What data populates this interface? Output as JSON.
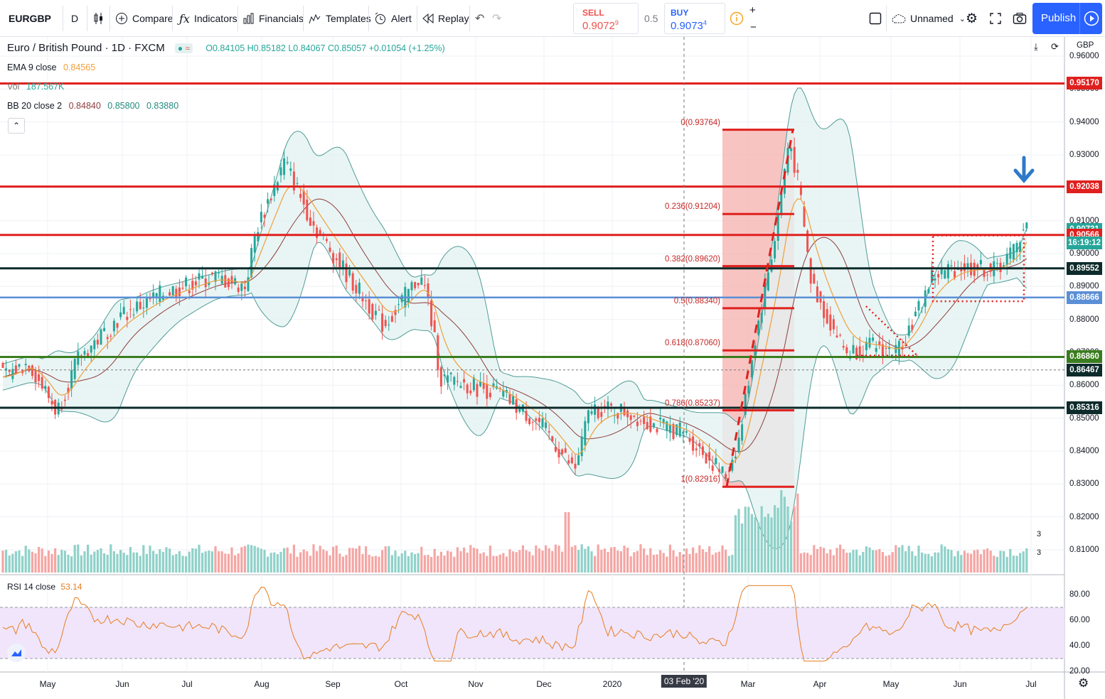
{
  "toolbar": {
    "symbol": "EURGBP",
    "interval": "D",
    "compare": "Compare",
    "indicators": "Indicators",
    "financials": "Financials",
    "templates": "Templates",
    "alert": "Alert",
    "replay": "Replay",
    "sell_label": "SELL",
    "sell_price": "0.9072",
    "sell_sup": "9",
    "spread": "0.5",
    "buy_label": "BUY",
    "buy_price": "0.9073",
    "buy_sup": "4",
    "layout_name": "Unnamed",
    "publish": "Publish"
  },
  "legend": {
    "title": "Euro / British Pound · 1D · FXCM",
    "ohlc": "O0.84105 H0.85182 L0.84067 C0.85057 +0.01054 (+1.25%)",
    "ema_name": "EMA 9 close",
    "ema_value": "0.84565",
    "vol_name": "Vol",
    "vol_value": "187.567K",
    "bb_name": "BB 20 close 2",
    "bb_v1": "0.84840",
    "bb_v2": "0.85800",
    "bb_v3": "0.83880",
    "rsi_name": "RSI 14 close",
    "rsi_value": "53.14"
  },
  "currency": "GBP",
  "colors": {
    "red": "#e0201e",
    "black_line": "#0d2b2b",
    "blue_line": "#5b8fd6",
    "green_line": "#3a7d1e",
    "bb_fill": "#e3f2f1",
    "bb_line": "#4f9c97",
    "up": "#26a69a",
    "down": "#ef5350",
    "ema": "#f19f3b",
    "bb_mid": "#8d3d3d",
    "rsi": "#e67e22",
    "rsi_band": "#f1e5fb",
    "fib_zone": "#f4b0ae",
    "badge_blue": "#2962ff"
  },
  "price_axis": [
    "0.96000",
    "0.95000",
    "0.94000",
    "0.93000",
    "0.92000",
    "0.91000",
    "0.90000",
    "0.89000",
    "0.88000",
    "0.87000",
    "0.86000",
    "0.85000",
    "0.84000",
    "0.83000",
    "0.82000",
    "0.81000"
  ],
  "rsi_axis": [
    "80.00",
    "60.00",
    "40.00",
    "20.00"
  ],
  "time_axis": [
    "May",
    "Jun",
    "Jul",
    "Aug",
    "Sep",
    "Oct",
    "Nov",
    "Dec",
    "2020",
    "03 Feb '20",
    "Mar",
    "Apr",
    "May",
    "Jun",
    "Jul"
  ],
  "countdown": "16:19:12",
  "price_badges": [
    {
      "text": "0.95170",
      "kind": "red",
      "price": 0.9517
    },
    {
      "text": "0.92038",
      "kind": "red",
      "price": 0.92038
    },
    {
      "text": "0.90731",
      "kind": "teal",
      "price": 0.90731
    },
    {
      "text": "0.90566",
      "kind": "red",
      "price": 0.90566
    },
    {
      "text": "0.89552",
      "kind": "dark",
      "price": 0.89552
    },
    {
      "text": "0.88666",
      "kind": "blue",
      "price": 0.88666
    },
    {
      "text": "0.86860",
      "kind": "green",
      "price": 0.8686
    },
    {
      "text": "0.86467",
      "kind": "dark",
      "price": 0.86467
    },
    {
      "text": "0.85316",
      "kind": "dark",
      "price": 0.85316
    }
  ],
  "fib_levels": [
    {
      "label": "0(0.93764)",
      "price": 0.93764
    },
    {
      "label": "0.236(0.91204)",
      "price": 0.91204
    },
    {
      "label": "0.382(0.89620)",
      "price": 0.8962
    },
    {
      "label": "0.5(0.88340)",
      "price": 0.8834
    },
    {
      "label": "0.618(0.87060)",
      "price": 0.8706
    },
    {
      "label": "0.786(0.85237)",
      "price": 0.85237
    },
    {
      "label": "1(0.82916)",
      "price": 0.82916
    }
  ],
  "volume_labels": [
    "3",
    "3"
  ]
}
